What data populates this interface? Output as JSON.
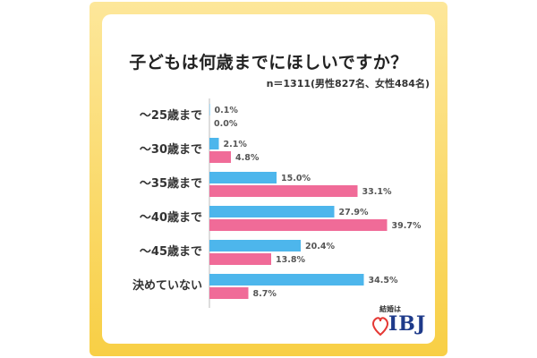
{
  "title": "子どもは何歳までにほしいですか？",
  "subtitle": "n＝1311(男性827名、女性484名)",
  "logo": {
    "sub": "結婚は",
    "main": "IBJ"
  },
  "colors": {
    "male": "#4db6ec",
    "female": "#f06b98",
    "axis": "#bbbbbb"
  },
  "chart_data": {
    "type": "bar",
    "orientation": "horizontal",
    "categories": [
      "〜25歳まで",
      "〜30歳まで",
      "〜35歳まで",
      "〜40歳まで",
      "〜45歳まで",
      "決めていない"
    ],
    "series": [
      {
        "values": [
          0.1,
          2.1,
          15.0,
          27.9,
          20.4,
          34.5
        ],
        "labels": [
          "0.1%",
          "2.1%",
          "15.0%",
          "27.9%",
          "20.4%",
          "34.5%"
        ]
      },
      {
        "values": [
          0.0,
          4.8,
          33.1,
          39.7,
          13.8,
          8.7
        ],
        "labels": [
          "0.0%",
          "4.8%",
          "33.1%",
          "39.7%",
          "13.8%",
          "8.7%"
        ]
      }
    ],
    "xlim": [
      0,
      40
    ],
    "grid": false
  }
}
